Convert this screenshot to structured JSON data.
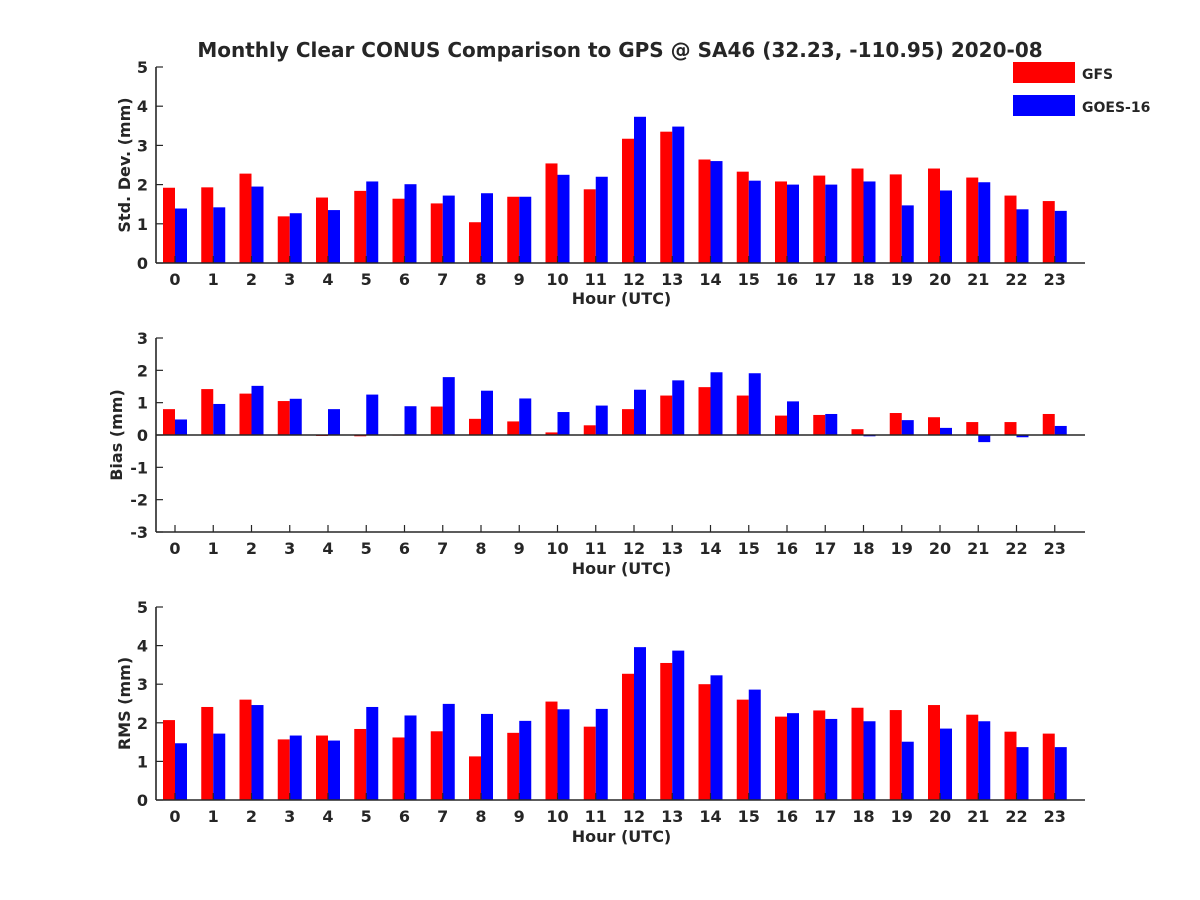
{
  "figure": {
    "title": "Monthly Clear CONUS Comparison to GPS @ SA46 (32.23, -110.95) 2020-08"
  },
  "legend": {
    "placement": "top-right",
    "entries": [
      {
        "label": "GFS",
        "color": "#ff0000"
      },
      {
        "label": "GOES-16",
        "color": "#0000ff"
      }
    ]
  },
  "colors": {
    "axis": "#262626",
    "gfs": "#ff0000",
    "goes": "#0000ff"
  },
  "chart_data": [
    {
      "type": "bar",
      "xlabel": "Hour (UTC)",
      "ylabel": "Std. Dev. (mm)",
      "ylim": [
        0,
        5
      ],
      "yticks": [
        0,
        1,
        2,
        3,
        4,
        5
      ],
      "categories": [
        "0",
        "1",
        "2",
        "3",
        "4",
        "5",
        "6",
        "7",
        "8",
        "9",
        "10",
        "11",
        "12",
        "13",
        "14",
        "15",
        "16",
        "17",
        "18",
        "19",
        "20",
        "21",
        "22",
        "23"
      ],
      "series": [
        {
          "name": "GFS",
          "color": "#ff0000",
          "values": [
            1.92,
            1.93,
            2.28,
            1.19,
            1.67,
            1.84,
            1.64,
            1.52,
            1.04,
            1.69,
            2.54,
            1.88,
            3.17,
            3.35,
            2.64,
            2.33,
            2.08,
            2.23,
            2.41,
            2.26,
            2.41,
            2.18,
            1.72,
            1.58
          ]
        },
        {
          "name": "GOES-16",
          "color": "#0000ff",
          "values": [
            1.39,
            1.42,
            1.95,
            1.27,
            1.35,
            2.08,
            2.01,
            1.72,
            1.78,
            1.69,
            2.25,
            2.2,
            3.73,
            3.48,
            2.6,
            2.1,
            2.0,
            2.0,
            2.08,
            1.47,
            1.85,
            2.06,
            1.37,
            1.33
          ]
        }
      ]
    },
    {
      "type": "bar",
      "xlabel": "Hour (UTC)",
      "ylabel": "Bias (mm)",
      "ylim": [
        -3,
        3
      ],
      "yticks": [
        -3,
        -2,
        -1,
        0,
        1,
        2,
        3
      ],
      "categories": [
        "0",
        "1",
        "2",
        "3",
        "4",
        "5",
        "6",
        "7",
        "8",
        "9",
        "10",
        "11",
        "12",
        "13",
        "14",
        "15",
        "16",
        "17",
        "18",
        "19",
        "20",
        "21",
        "22",
        "23"
      ],
      "series": [
        {
          "name": "GFS",
          "color": "#ff0000",
          "values": [
            0.8,
            1.42,
            1.28,
            1.05,
            -0.03,
            -0.04,
            0.0,
            0.88,
            0.5,
            0.42,
            0.08,
            0.3,
            0.8,
            1.22,
            1.48,
            1.22,
            0.6,
            0.62,
            0.18,
            0.68,
            0.55,
            0.4,
            0.4,
            0.65
          ]
        },
        {
          "name": "GOES-16",
          "color": "#0000ff",
          "values": [
            0.48,
            0.96,
            1.52,
            1.12,
            0.8,
            1.25,
            0.89,
            1.79,
            1.37,
            1.13,
            0.71,
            0.91,
            1.4,
            1.69,
            1.94,
            1.91,
            1.04,
            0.65,
            -0.04,
            0.46,
            0.22,
            -0.22,
            -0.07,
            0.28
          ]
        }
      ]
    },
    {
      "type": "bar",
      "xlabel": "Hour (UTC)",
      "ylabel": "RMS (mm)",
      "ylim": [
        0,
        5
      ],
      "yticks": [
        0,
        1,
        2,
        3,
        4,
        5
      ],
      "categories": [
        "0",
        "1",
        "2",
        "3",
        "4",
        "5",
        "6",
        "7",
        "8",
        "9",
        "10",
        "11",
        "12",
        "13",
        "14",
        "15",
        "16",
        "17",
        "18",
        "19",
        "20",
        "21",
        "22",
        "23"
      ],
      "series": [
        {
          "name": "GFS",
          "color": "#ff0000",
          "values": [
            2.07,
            2.41,
            2.6,
            1.57,
            1.67,
            1.84,
            1.62,
            1.78,
            1.13,
            1.74,
            2.55,
            1.9,
            3.27,
            3.55,
            3.0,
            2.6,
            2.16,
            2.32,
            2.39,
            2.33,
            2.46,
            2.21,
            1.77,
            1.72
          ]
        },
        {
          "name": "GOES-16",
          "color": "#0000ff",
          "values": [
            1.47,
            1.72,
            2.46,
            1.67,
            1.54,
            2.41,
            2.19,
            2.49,
            2.23,
            2.05,
            2.35,
            2.36,
            3.96,
            3.87,
            3.23,
            2.86,
            2.25,
            2.1,
            2.04,
            1.51,
            1.85,
            2.04,
            1.37,
            1.37
          ]
        }
      ]
    }
  ]
}
